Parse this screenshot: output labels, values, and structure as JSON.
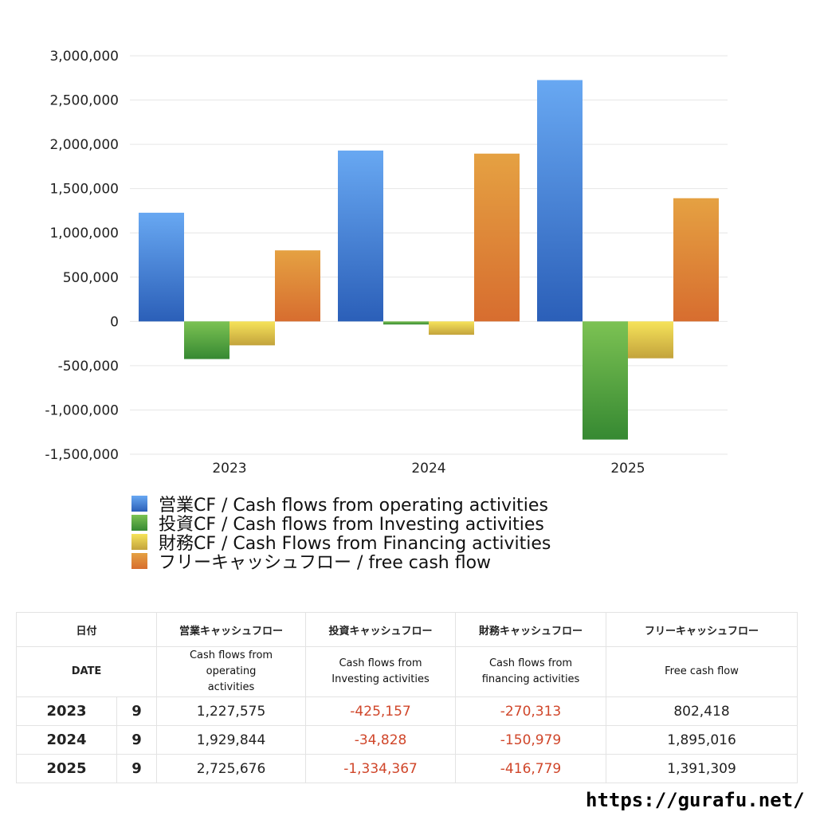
{
  "chart_data": {
    "type": "bar",
    "categories": [
      "2023",
      "2024",
      "2025"
    ],
    "series": [
      {
        "name": "営業CF / Cash flows from operating activities",
        "values": [
          1227575,
          1929844,
          2725676
        ],
        "color_top": "#68a8f2",
        "color_bottom": "#2b5fb8"
      },
      {
        "name": "投資CF / Cash flows from Investing activities",
        "values": [
          -425157,
          -34828,
          -1334367
        ],
        "color_top": "#7cc253",
        "color_bottom": "#368932"
      },
      {
        "name": "財務CF / Cash Flows from Financing activities",
        "values": [
          -270313,
          -150979,
          -416779
        ],
        "color_top": "#f6e35a",
        "color_bottom": "#c3a33c"
      },
      {
        "name": "フリーキャッシュフロー / free cash flow",
        "values": [
          802418,
          1895016,
          1391309
        ],
        "color_top": "#e5a142",
        "color_bottom": "#d76d2f"
      }
    ],
    "ylim": [
      -1500000,
      3000000
    ],
    "yticks": [
      "3,000,000",
      "2,500,000",
      "2,000,000",
      "1,500,000",
      "1,000,000",
      "500,000",
      "0",
      "-500,000",
      "-1,000,000",
      "-1,500,000"
    ],
    "ytick_values": [
      3000000,
      2500000,
      2000000,
      1500000,
      1000000,
      500000,
      0,
      -500000,
      -1000000,
      -1500000
    ],
    "grid": true,
    "legend_position": "bottom"
  },
  "legend": [
    "営業CF / Cash flows from operating activities",
    "投資CF / Cash flows from Investing activities",
    "財務CF / Cash Flows from Financing activities",
    "フリーキャッシュフロー / free cash flow"
  ],
  "table": {
    "header_jp": {
      "date": "日付",
      "op": "営業キャッシュフロー",
      "inv": "投資キャッシュフロー",
      "fin": "財務キャッシュフロー",
      "free": "フリーキャッシュフロー"
    },
    "header_en": {
      "date": "DATE",
      "op": "Cash flows from operating activities",
      "inv": "Cash flows from Investing activities",
      "fin": "Cash flows from financing activities",
      "free": "Free cash flow"
    },
    "rows": [
      {
        "year": "2023",
        "month": "9",
        "op": "1,227,575",
        "inv": "-425,157",
        "fin": "-270,313",
        "free": "802,418"
      },
      {
        "year": "2024",
        "month": "9",
        "op": "1,929,844",
        "inv": "-34,828",
        "fin": "-150,979",
        "free": "1,895,016"
      },
      {
        "year": "2025",
        "month": "9",
        "op": "2,725,676",
        "inv": "-1,334,367",
        "fin": "-416,779",
        "free": "1,391,309"
      }
    ],
    "negative_color": "#d0462a"
  },
  "site_url": "https://gurafu.net/"
}
